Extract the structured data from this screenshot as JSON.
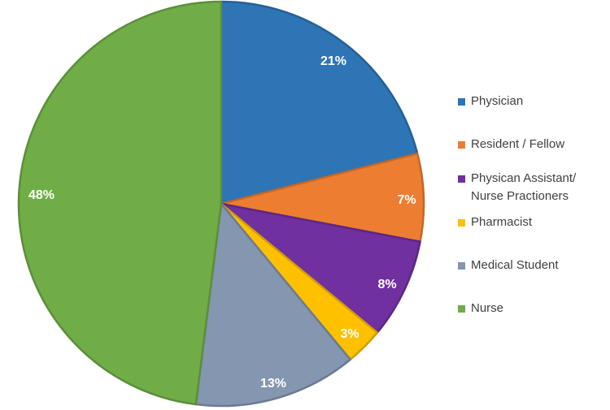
{
  "chart_data": {
    "type": "pie",
    "title": "",
    "slices": [
      {
        "label": "Physician",
        "value": 21,
        "display": "21%",
        "color": "#2E75B6"
      },
      {
        "label": "Resident / Fellow",
        "value": 7,
        "display": "7%",
        "color": "#ED7D31"
      },
      {
        "label": "Physican Assistant/\nNurse Practioners",
        "value": 8,
        "display": "8%",
        "color": "#7030A0"
      },
      {
        "label": "Pharmacist",
        "value": 3,
        "display": "3%",
        "color": "#FFC000"
      },
      {
        "label": "Medical Student",
        "value": 13,
        "display": "13%",
        "color": "#8496B0"
      },
      {
        "label": "Nurse",
        "value": 48,
        "display": "48%",
        "color": "#70AD47"
      }
    ],
    "start_angle": "12 o'clock",
    "direction": "clockwise",
    "legend_position": "right"
  }
}
